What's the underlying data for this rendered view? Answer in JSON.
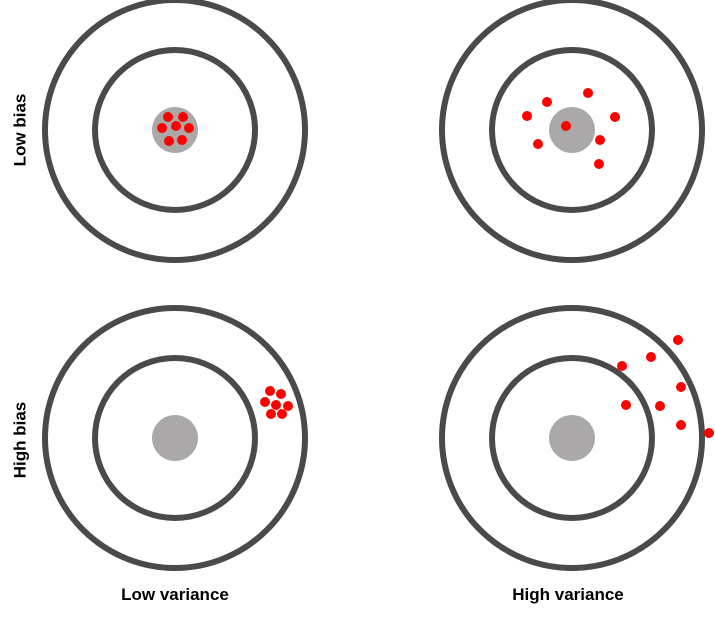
{
  "row_labels": {
    "top": "Low bias",
    "bottom": "High bias"
  },
  "column_labels": {
    "left": "Low variance",
    "right": "High variance"
  },
  "colors": {
    "ring": "#4a4a4a",
    "bullseye": "#aaa8a8",
    "point": "#ff0000",
    "background": "#ffffff",
    "text": "#000000"
  },
  "targets": [
    {
      "name": "low-bias-low-variance",
      "bias": "low",
      "variance": "low",
      "point_count": 7
    },
    {
      "name": "low-bias-high-variance",
      "bias": "low",
      "variance": "high",
      "point_count": 8
    },
    {
      "name": "high-bias-low-variance",
      "bias": "high",
      "variance": "low",
      "point_count": 7
    },
    {
      "name": "high-bias-high-variance",
      "bias": "high",
      "variance": "high",
      "point_count": 8
    }
  ]
}
